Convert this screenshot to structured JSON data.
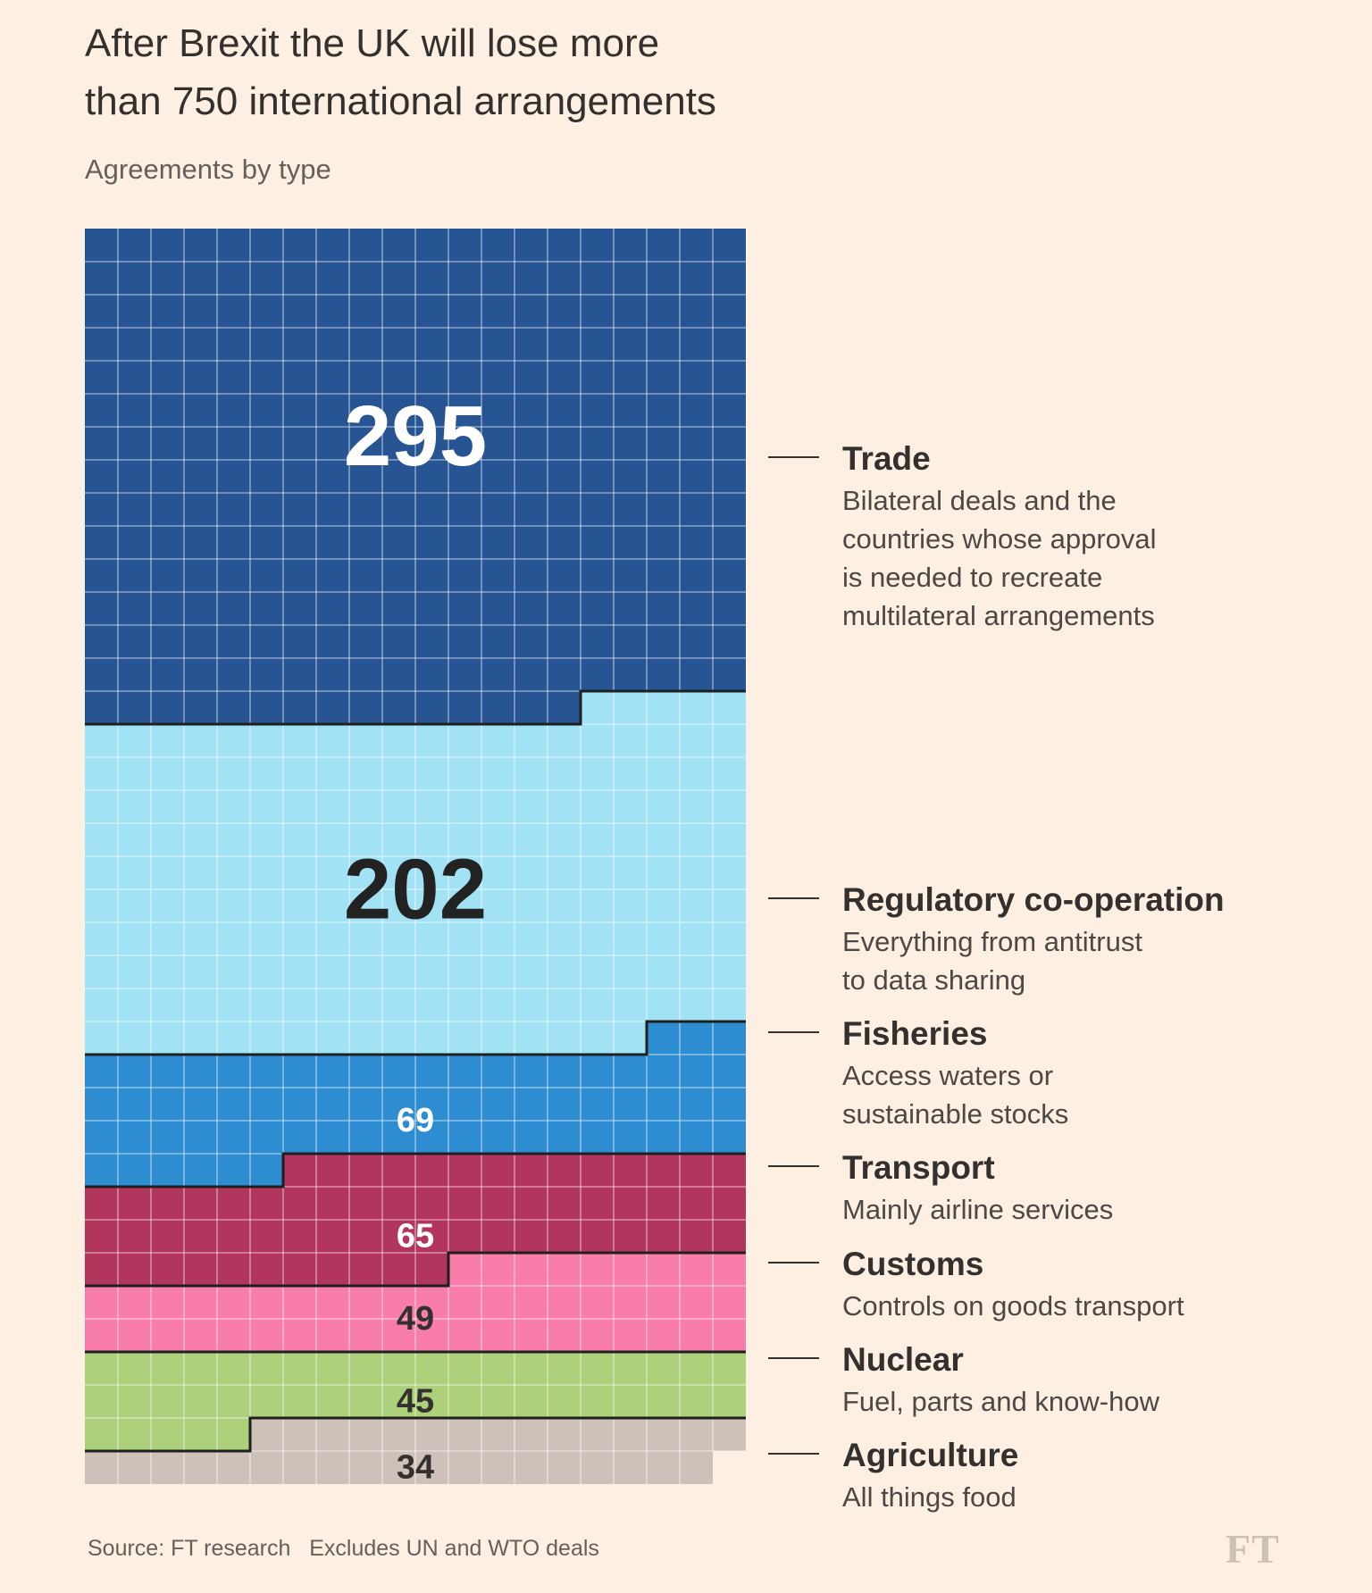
{
  "title_line1": "After Brexit the UK will lose more",
  "title_line2": "than 750 international arrangements",
  "subtitle": "Agreements by type",
  "source": "Source: FT research   Excludes UN and WTO deals",
  "logo_text": "FT",
  "chart_data": {
    "type": "waffle",
    "title": "After Brexit the UK will lose more than 750 international arrangements",
    "subtitle": "Agreements by type",
    "grid_columns": 20,
    "units_per_cell": 1,
    "categories": [
      "Trade",
      "Regulatory co-operation",
      "Fisheries",
      "Transport",
      "Customs",
      "Nuclear",
      "Agriculture"
    ],
    "values": [
      295,
      202,
      69,
      65,
      49,
      45,
      34
    ],
    "value_labels": [
      "295",
      "202",
      "69",
      "65",
      "49",
      "45",
      "34"
    ],
    "descriptions": [
      [
        "Bilateral deals and the",
        "countries whose approval",
        " is needed to recreate",
        "multilateral arrangements"
      ],
      [
        "Everything from antitrust",
        "to data sharing"
      ],
      [
        "Access waters or",
        "sustainable stocks"
      ],
      [
        "Mainly airline services"
      ],
      [
        "Controls on goods transport"
      ],
      [
        "Fuel, parts and know-how"
      ],
      [
        "All things food"
      ]
    ],
    "colors": [
      "#275593",
      "#a2e2f5",
      "#2e8dd1",
      "#b2355e",
      "#f97daa",
      "#add07a",
      "#cdc1b9"
    ],
    "label_colors": [
      "#ffffff",
      "#222222",
      "#ffffff",
      "#ffffff",
      "#33302e",
      "#33302e",
      "#33302e"
    ],
    "grid_line_color": "#ffffff",
    "border_color": "#1f1f1f",
    "legend_position": "right"
  }
}
